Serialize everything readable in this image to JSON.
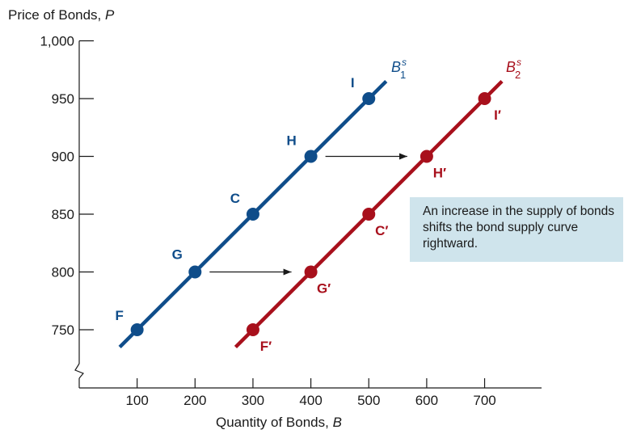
{
  "colors": {
    "supply1": "#0f4d8a",
    "supply2": "#a8101c",
    "note_bg": "#cfe4ec",
    "axis": "#1a1a1a"
  },
  "chart_data": {
    "type": "line",
    "xlabel_text": "Quantity of Bonds, ",
    "xlabel_var": "B",
    "ylabel_text": "Price of Bonds, ",
    "ylabel_var": "P",
    "xlim": [
      0,
      800
    ],
    "ylim": [
      720,
      1000
    ],
    "y_axis_break": true,
    "x_ticks": [
      100,
      200,
      300,
      400,
      500,
      600,
      700
    ],
    "x_tick_labels": [
      "100",
      "200",
      "300",
      "400",
      "500",
      "600",
      "700"
    ],
    "y_ticks": [
      750,
      800,
      850,
      900,
      950,
      1000
    ],
    "y_tick_labels": [
      "750",
      "800",
      "850",
      "900",
      "950",
      "1,000"
    ],
    "series": [
      {
        "id": "s1",
        "name_base": "B",
        "name_sup": "s",
        "name_sub": "1",
        "color": "#0f4d8a",
        "line_x": [
          70,
          530
        ],
        "points": [
          {
            "label": "F",
            "x": 100,
            "y": 750
          },
          {
            "label": "G",
            "x": 200,
            "y": 800
          },
          {
            "label": "C",
            "x": 300,
            "y": 850
          },
          {
            "label": "H",
            "x": 400,
            "y": 900
          },
          {
            "label": "I",
            "x": 500,
            "y": 950
          }
        ]
      },
      {
        "id": "s2",
        "name_base": "B",
        "name_sup": "s",
        "name_sub": "2",
        "color": "#a8101c",
        "line_x": [
          270,
          730
        ],
        "points": [
          {
            "label": "F′",
            "x": 300,
            "y": 750
          },
          {
            "label": "G′",
            "x": 400,
            "y": 800
          },
          {
            "label": "C′",
            "x": 500,
            "y": 850
          },
          {
            "label": "H′",
            "x": 600,
            "y": 900
          },
          {
            "label": "I′",
            "x": 700,
            "y": 950
          }
        ]
      }
    ],
    "arrows": [
      {
        "from": [
          200,
          800
        ],
        "to": [
          400,
          800
        ]
      },
      {
        "from": [
          400,
          900
        ],
        "to": [
          600,
          900
        ]
      }
    ],
    "annotation": "An increase in the supply of bonds shifts the bond supply curve rightward."
  }
}
